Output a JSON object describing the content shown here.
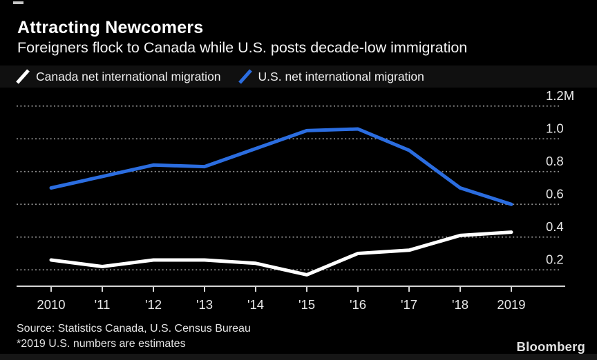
{
  "header": {
    "title": "Attracting Newcomers",
    "subtitle": "Foreigners flock to Canada while U.S. posts decade-low immigration"
  },
  "legend": [
    {
      "label": "Canada net international migration",
      "color": "#ffffff"
    },
    {
      "label": "U.S. net international migration",
      "color": "#2b6de0"
    }
  ],
  "chart_data": {
    "type": "line",
    "x": [
      2010,
      2011,
      2012,
      2013,
      2014,
      2015,
      2016,
      2017,
      2018,
      2019
    ],
    "x_labels": [
      "2010",
      "'11",
      "'12",
      "'13",
      "'14",
      "'15",
      "'16",
      "'17",
      "'18",
      "2019"
    ],
    "series": [
      {
        "name": "Canada net international migration",
        "color": "#ffffff",
        "values": [
          0.26,
          0.22,
          0.26,
          0.26,
          0.24,
          0.17,
          0.3,
          0.32,
          0.41,
          0.43
        ]
      },
      {
        "name": "U.S. net international migration",
        "color": "#2b6de0",
        "values": [
          0.7,
          0.77,
          0.84,
          0.83,
          0.94,
          1.05,
          1.06,
          0.93,
          0.7,
          0.6
        ]
      }
    ],
    "unit": "millions of people",
    "y_ticks": [
      {
        "value": 1.2,
        "label": "1.2M"
      },
      {
        "value": 1.0,
        "label": "1.0"
      },
      {
        "value": 0.8,
        "label": "0.8"
      },
      {
        "value": 0.6,
        "label": "0.6"
      },
      {
        "value": 0.4,
        "label": "0.4"
      },
      {
        "value": 0.2,
        "label": "0.2"
      }
    ],
    "ylim": [
      0.1,
      1.26
    ],
    "grid": "dotted-horizontal",
    "legend_position": "top",
    "colors": {
      "background": "#000000",
      "grid": "#8f8f8f",
      "axis": "#d6d6d6",
      "tick_label": "#e8e8e8"
    }
  },
  "footer": {
    "source": "Source: Statistics Canada, U.S. Census Bureau",
    "note": "*2019 U.S. numbers are estimates",
    "brand": "Bloomberg"
  }
}
